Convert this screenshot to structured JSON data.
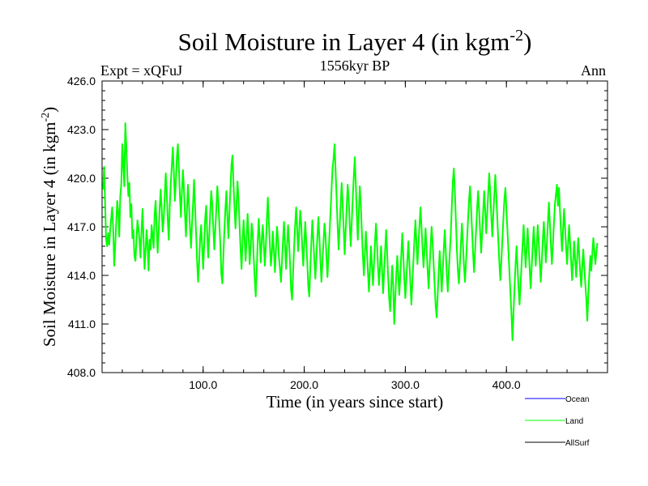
{
  "chart_data": {
    "type": "line",
    "title": "Soil Moisture in Layer 4 (in kgm",
    "title_sup": "-2",
    "title_close": ")",
    "subtitle_left": "Expt = xQFuJ",
    "subtitle_center": "1556kyr BP",
    "subtitle_right": "Ann",
    "xlabel": "Time (in years since start)",
    "ylabel": "Soil Moisture in Layer 4 (in kgm",
    "ylabel_sup": "-2",
    "ylabel_close": ")",
    "xlim": [
      0,
      500
    ],
    "ylim": [
      408.0,
      426.0
    ],
    "xticks": [
      100,
      200,
      300,
      400
    ],
    "xtick_labels": [
      "100.0",
      "200.0",
      "300.0",
      "400.0"
    ],
    "yticks": [
      408,
      411,
      414,
      417,
      420,
      423,
      426
    ],
    "ytick_labels": [
      "408.0",
      "411.0",
      "414.0",
      "417.0",
      "420.0",
      "423.0",
      "426.0"
    ],
    "series": [
      {
        "name": "Land",
        "color": "#00ff00",
        "x_start": 1,
        "x_step": 1,
        "values": [
          419.3,
          420.7,
          418.5,
          416.2,
          415.8,
          416.6,
          415.9,
          416.8,
          417.5,
          418.2,
          416.9,
          414.6,
          415.8,
          417.3,
          418.6,
          417.9,
          416.4,
          418.9,
          419.6,
          422.1,
          420.8,
          419.5,
          423.4,
          422.0,
          420.2,
          418.9,
          419.7,
          417.6,
          418.4,
          416.3,
          416.8,
          415.2,
          414.9,
          416.1,
          417.4,
          416.9,
          416.2,
          415.1,
          416.7,
          418.1,
          416.3,
          414.4,
          415.5,
          416.8,
          415.9,
          414.3,
          416.2,
          415.6,
          417.1,
          416.4,
          415.7,
          417.8,
          418.6,
          416.9,
          415.4,
          416.7,
          418.2,
          419.3,
          418.1,
          416.7,
          417.5,
          418.9,
          420.3,
          419.1,
          417.4,
          416.2,
          418.3,
          419.7,
          420.8,
          421.9,
          420.4,
          418.6,
          419.8,
          421.3,
          422.1,
          420.6,
          418.9,
          417.6,
          419.2,
          420.5,
          419.3,
          417.8,
          416.4,
          418.1,
          419.6,
          418.3,
          416.9,
          415.7,
          417.2,
          418.4,
          419.9,
          418.2,
          416.6,
          414.9,
          413.6,
          414.8,
          416.3,
          417.1,
          415.8,
          414.4,
          415.9,
          417.5,
          418.3,
          416.6,
          415.1,
          416.4,
          417.9,
          419.2,
          418.4,
          417.0,
          415.6,
          416.8,
          418.1,
          419.5,
          418.6,
          417.2,
          415.9,
          414.1,
          413.5,
          415.2,
          416.8,
          418.1,
          419.2,
          417.6,
          416.3,
          417.9,
          419.4,
          420.8,
          421.4,
          419.7,
          418.2,
          416.9,
          418.3,
          419.8,
          418.7,
          417.1,
          415.6,
          414.4,
          416.1,
          417.4,
          416.2,
          414.9,
          416.3,
          417.8,
          416.4,
          414.7,
          415.8,
          417.2,
          416.6,
          415.1,
          413.8,
          412.7,
          414.3,
          416.2,
          417.5,
          416.1,
          414.8,
          416.3,
          417.1,
          415.9,
          414.6,
          415.8,
          417.4,
          418.8,
          417.3,
          415.9,
          414.6,
          415.4,
          416.7,
          415.5,
          414.2,
          415.6,
          417.0,
          416.3,
          415.1,
          414.4,
          413.6,
          414.9,
          416.2,
          417.3,
          415.8,
          414.4,
          415.9,
          417.1,
          416.0,
          414.7,
          413.1,
          412.5,
          414.2,
          415.8,
          417.1,
          418.2,
          416.9,
          415.5,
          416.7,
          418.0,
          417.2,
          415.8,
          414.6,
          415.9,
          417.3,
          416.1,
          414.8,
          413.3,
          412.7,
          414.5,
          416.0,
          417.4,
          416.2,
          414.9,
          413.8,
          415.1,
          416.4,
          417.6,
          416.3,
          414.9,
          413.6,
          414.8,
          416.0,
          417.2,
          416.5,
          415.1,
          413.9,
          415.2,
          416.6,
          417.9,
          419.3,
          420.6,
          421.2,
          422.1,
          420.5,
          418.8,
          417.1,
          415.6,
          416.9,
          418.3,
          419.7,
          418.4,
          416.9,
          415.3,
          416.8,
          418.2,
          419.6,
          418.7,
          417.1,
          415.8,
          417.3,
          418.8,
          420.1,
          421.3,
          419.6,
          417.8,
          416.2,
          417.9,
          419.5,
          418.3,
          416.7,
          415.2,
          414.0,
          415.4,
          416.7,
          415.5,
          414.2,
          413.0,
          414.4,
          415.8,
          414.6,
          413.4,
          414.7,
          416.1,
          417.2,
          415.9,
          414.5,
          413.4,
          414.6,
          415.8,
          414.3,
          412.9,
          414.2,
          415.5,
          416.8,
          415.4,
          413.9,
          412.6,
          411.8,
          413.2,
          414.6,
          413.4,
          411.0,
          412.5,
          414.0,
          415.2,
          414.1,
          412.8,
          413.9,
          415.3,
          416.6,
          415.2,
          413.8,
          412.6,
          413.7,
          414.9,
          416.1,
          414.8,
          413.5,
          412.2,
          413.6,
          414.9,
          416.2,
          417.4,
          416.0,
          414.7,
          415.9,
          417.1,
          418.2,
          417.0,
          415.7,
          414.5,
          415.6,
          416.9,
          415.7,
          414.4,
          413.2,
          414.5,
          415.8,
          417.0,
          416.0,
          414.7,
          413.4,
          412.1,
          411.4,
          412.8,
          414.2,
          415.5,
          414.3,
          413.0,
          414.3,
          415.6,
          416.8,
          415.5,
          414.1,
          413.0,
          414.2,
          415.4,
          416.6,
          418.3,
          419.8,
          420.6,
          419.2,
          417.4,
          415.6,
          414.3,
          413.5,
          414.7,
          416.0,
          417.2,
          415.9,
          414.6,
          413.6,
          414.8,
          416.1,
          417.4,
          418.6,
          419.5,
          418.2,
          416.8,
          415.4,
          414.2,
          415.5,
          416.8,
          418.1,
          419.2,
          418.0,
          416.7,
          415.4,
          416.6,
          417.9,
          419.2,
          418.0,
          416.6,
          417.8,
          419.1,
          420.3,
          419.1,
          417.7,
          416.4,
          417.7,
          418.9,
          420.2,
          419.0,
          417.5,
          416.1,
          414.8,
          413.7,
          414.9,
          416.2,
          417.5,
          418.7,
          419.4,
          418.1,
          416.8,
          415.5,
          414.2,
          412.9,
          411.6,
          410.0,
          411.7,
          413.2,
          414.6,
          415.8,
          414.5,
          413.2,
          412.2,
          413.4,
          414.7,
          415.9,
          417.1,
          415.8,
          414.5,
          415.7,
          416.9,
          415.7,
          414.4,
          413.2,
          414.5,
          415.8,
          417.0,
          415.8,
          414.6,
          415.9,
          417.1,
          416.0,
          414.8,
          413.6,
          414.9,
          416.2,
          417.3,
          416.1,
          414.8,
          415.9,
          417.2,
          418.5,
          417.2,
          415.9,
          414.7,
          415.9,
          417.2,
          418.4,
          419.0,
          419.6,
          418.3,
          419.4,
          418.0,
          416.7,
          415.5,
          416.8,
          418.1,
          417.0,
          415.8,
          414.7,
          415.9,
          417.1,
          416.0,
          414.9,
          413.7,
          414.9,
          416.1,
          415.0,
          413.9,
          415.1,
          416.3,
          415.3,
          414.2,
          413.3,
          414.5,
          415.6,
          414.6,
          413.5,
          412.6,
          411.2,
          412.7,
          414.1,
          415.2,
          414.3,
          415.4,
          416.3,
          415.5,
          414.7,
          415.4,
          416.0
        ]
      }
    ],
    "legend": [
      {
        "label": "Ocean",
        "color": "#0000ff"
      },
      {
        "label": "Land",
        "color": "#00ff00"
      },
      {
        "label": "AllSurf",
        "color": "#000000"
      }
    ]
  }
}
